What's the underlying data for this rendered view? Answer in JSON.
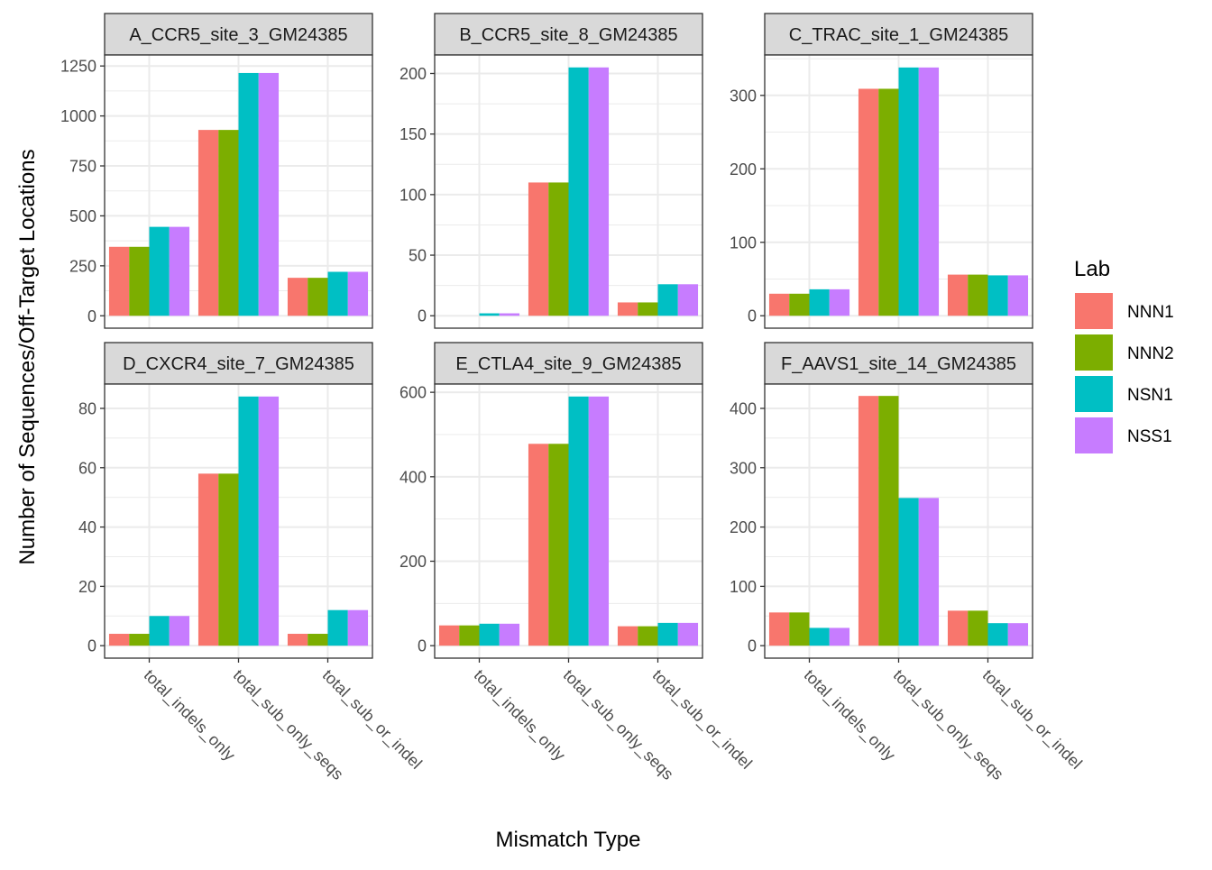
{
  "chart_data": {
    "type": "bar",
    "xlabel": "Mismatch Type",
    "ylabel": "Number of Sequences/Off-Target Locations",
    "categories": [
      "total_indels_only",
      "total_sub_only_seqs",
      "total_sub_or_indel"
    ],
    "legend": {
      "title": "Lab",
      "placement": "right",
      "entries": [
        "NNN1",
        "NNN2",
        "NSN1",
        "NSS1"
      ]
    },
    "colors": {
      "NNN1": "#F8766D",
      "NNN2": "#7CAE00",
      "NSN1": "#00BFC4",
      "NSS1": "#C77CFF"
    },
    "grid": true,
    "panels": [
      {
        "title": "A_CCR5_site_3_GM24385",
        "yticks": [
          0,
          250,
          500,
          750,
          1000,
          1250
        ],
        "ylim": [
          -62,
          1305
        ],
        "series": [
          {
            "name": "NNN1",
            "values": [
              345,
              930,
              190
            ]
          },
          {
            "name": "NNN2",
            "values": [
              345,
              930,
              190
            ]
          },
          {
            "name": "NSN1",
            "values": [
              445,
              1215,
              220
            ]
          },
          {
            "name": "NSS1",
            "values": [
              445,
              1215,
              220
            ]
          }
        ]
      },
      {
        "title": "B_CCR5_site_8_GM24385",
        "yticks": [
          0,
          50,
          100,
          150,
          200
        ],
        "ylim": [
          -10.25,
          215.25
        ],
        "series": [
          {
            "name": "NNN1",
            "values": [
              0,
              110,
              11
            ]
          },
          {
            "name": "NNN2",
            "values": [
              0,
              110,
              11
            ]
          },
          {
            "name": "NSN1",
            "values": [
              2,
              205,
              26
            ]
          },
          {
            "name": "NSS1",
            "values": [
              2,
              205,
              26
            ]
          }
        ]
      },
      {
        "title": "C_TRAC_site_1_GM24385",
        "yticks": [
          0,
          100,
          200,
          300
        ],
        "ylim": [
          -16.9,
          355
        ],
        "series": [
          {
            "name": "NNN1",
            "values": [
              30,
              309,
              56
            ]
          },
          {
            "name": "NNN2",
            "values": [
              30,
              309,
              56
            ]
          },
          {
            "name": "NSN1",
            "values": [
              36,
              338,
              55
            ]
          },
          {
            "name": "NSS1",
            "values": [
              36,
              338,
              55
            ]
          }
        ]
      },
      {
        "title": "D_CXCR4_site_7_GM24385",
        "yticks": [
          0,
          20,
          40,
          60,
          80
        ],
        "ylim": [
          -4.2,
          88.2
        ],
        "series": [
          {
            "name": "NNN1",
            "values": [
              4,
              58,
              4
            ]
          },
          {
            "name": "NNN2",
            "values": [
              4,
              58,
              4
            ]
          },
          {
            "name": "NSN1",
            "values": [
              10,
              84,
              12
            ]
          },
          {
            "name": "NSS1",
            "values": [
              10,
              84,
              12
            ]
          }
        ]
      },
      {
        "title": "E_CTLA4_site_9_GM24385",
        "yticks": [
          0,
          200,
          400,
          600
        ],
        "ylim": [
          -29.5,
          619.5
        ],
        "series": [
          {
            "name": "NNN1",
            "values": [
              48,
              478,
              46
            ]
          },
          {
            "name": "NNN2",
            "values": [
              48,
              478,
              46
            ]
          },
          {
            "name": "NSN1",
            "values": [
              52,
              590,
              54
            ]
          },
          {
            "name": "NSS1",
            "values": [
              52,
              590,
              54
            ]
          }
        ]
      },
      {
        "title": "F_AAVS1_site_14_GM24385",
        "yticks": [
          0,
          100,
          200,
          300,
          400
        ],
        "ylim": [
          -21,
          441
        ],
        "series": [
          {
            "name": "NNN1",
            "values": [
              56,
              421,
              59
            ]
          },
          {
            "name": "NNN2",
            "values": [
              56,
              421,
              59
            ]
          },
          {
            "name": "NSN1",
            "values": [
              30,
              249,
              38
            ]
          },
          {
            "name": "NSS1",
            "values": [
              30,
              249,
              38
            ]
          }
        ]
      }
    ]
  }
}
